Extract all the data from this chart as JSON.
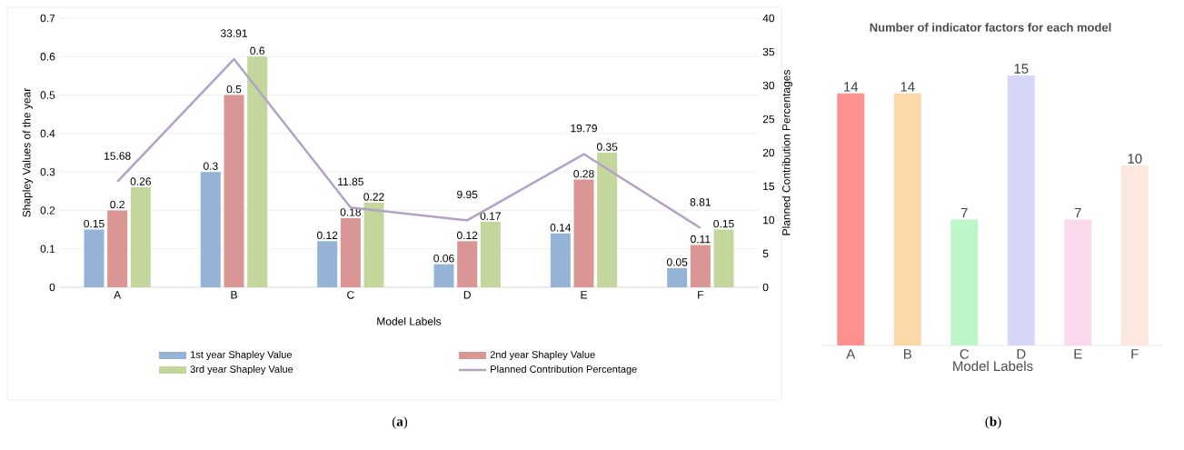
{
  "chart_data": [
    {
      "type": "bar",
      "xlabel": "Model Labels",
      "ylabel": "Shapley Values of the year",
      "y2label": "Planned Contribution Percentages",
      "categories": [
        "A",
        "B",
        "C",
        "D",
        "E",
        "F"
      ],
      "series": [
        {
          "name": "1st year Shapley Value",
          "color": "#95b3d7",
          "values": [
            0.15,
            0.3,
            0.12,
            0.06,
            0.14,
            0.05
          ]
        },
        {
          "name": "2nd year Shapley Value",
          "color": "#d99694",
          "values": [
            0.2,
            0.5,
            0.18,
            0.12,
            0.28,
            0.11
          ]
        },
        {
          "name": "3rd year Shapley Value",
          "color": "#c3d69b",
          "values": [
            0.26,
            0.6,
            0.22,
            0.17,
            0.35,
            0.15
          ]
        },
        {
          "name": "Planned Contribution Percentage",
          "color": "#b3a2c7",
          "type": "line",
          "axis": "y2",
          "values": [
            15.68,
            33.91,
            11.85,
            9.95,
            19.79,
            8.81
          ]
        }
      ],
      "ylim": [
        0,
        0.7
      ],
      "yticks": [
        0,
        0.1,
        0.2,
        0.3,
        0.4,
        0.5,
        0.6,
        0.7
      ],
      "y2lim": [
        0,
        40
      ],
      "y2ticks": [
        0,
        5,
        10,
        15,
        20,
        25,
        30,
        35,
        40
      ],
      "grid": "y",
      "legend": "bottom",
      "data_labels": true,
      "annotations": [
        "(**a**)"
      ]
    },
    {
      "type": "bar",
      "title": "Number of indicator factors for each model",
      "xlabel": "Model Labels",
      "categories": [
        "A",
        "B",
        "C",
        "D",
        "E",
        "F"
      ],
      "values": [
        14,
        14,
        7,
        15,
        7,
        10
      ],
      "colors": [
        "#fe9090",
        "#fbd8a8",
        "#bdf7c9",
        "#d6d6f9",
        "#fbdaf0",
        "#fde8e0"
      ],
      "tick_labels": "x",
      "data_labels": true,
      "annotations": [
        "(**b**)"
      ]
    }
  ]
}
